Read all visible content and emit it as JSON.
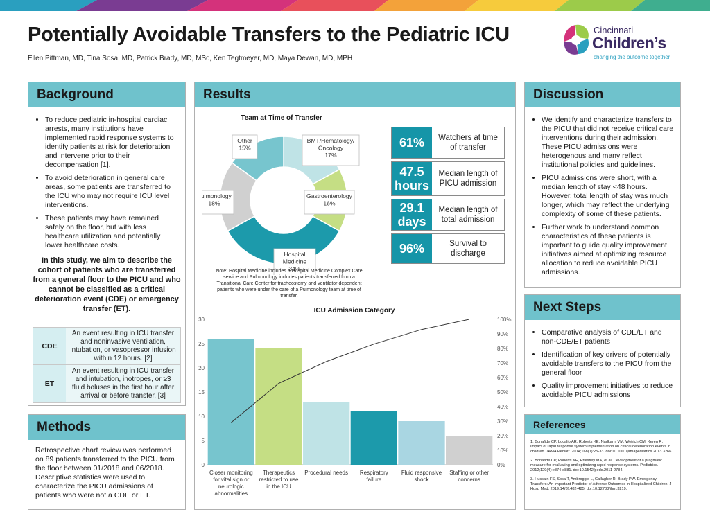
{
  "header": {
    "title": "Potentially Avoidable Transfers to the Pediatric ICU",
    "authors": "Ellen Pittman, MD, Tina Sosa, MD, Patrick Brady, MD, MSc, Ken Tegtmeyer, MD, Maya Dewan, MD, MPH"
  },
  "logo": {
    "line1": "Cincinnati",
    "line2": "Children’s",
    "tagline": "changing the outcome together"
  },
  "background": {
    "heading": "Background",
    "bullets": [
      "To reduce pediatric in-hospital cardiac arrests, many institutions have implemented rapid response systems to identify patients at risk for deterioration and intervene prior to their decompensation [1].",
      "To avoid deterioration in general care areas, some patients are transferred to the ICU who may not require ICU level interventions.",
      "These patients may have remained safely on the floor, but with less healthcare utilization and potentially lower healthcare costs."
    ],
    "aim": "In this study, we aim to describe the cohort of patients who are transferred from a general floor to the PICU and who cannot be classified as a critical deterioration event (CDE) or emergency transfer (ET).",
    "definitions": [
      {
        "key": "CDE",
        "text": "An event resulting in ICU transfer and noninvasive ventilation, intubation, or vasopressor infusion within 12 hours. [2]"
      },
      {
        "key": "ET",
        "text": "An event resulting in ICU transfer and intubation, inotropes, or ≥3 fluid boluses in the first hour after arrival or before transfer. [3]"
      }
    ]
  },
  "methods": {
    "heading": "Methods",
    "text": "Retrospective chart review was performed on 89 patients transferred to the PICU from the floor between 01/2018 and 06/2018. Descriptive statistics were used to characterize the PICU admissions of patients who were not a CDE or ET."
  },
  "results": {
    "heading": "Results",
    "stats": [
      {
        "value": "61%",
        "label": "Watchers at time of transfer"
      },
      {
        "value": "47.5 hours",
        "label": "Median length of PICU admission"
      },
      {
        "value": "29.1 days",
        "label": "Median length of total admission"
      },
      {
        "value": "96%",
        "label": "Survival to discharge"
      }
    ],
    "note": "Note: Hospital Medicine includes a Hospital Medicine Complex Care service and Pulmonology includes patients transferred from a Transitional Care Center for tracheostomy and ventilator dependent patients who were under the care of a Pulmonology team at time of transfer."
  },
  "discussion": {
    "heading": "Discussion",
    "bullets": [
      "We identify and characterize transfers to the PICU that did not receive critical care interventions during their admission. These PICU admissions were heterogenous and many reflect institutional policies and guidelines.",
      "PICU admissions were short, with a median length of stay <48 hours. However, total length of stay was much longer, which may reflect the underlying complexity of some of these patients.",
      "Further work to understand common characteristics of these patients is important to guide quality improvement initiatives aimed at optimizing resource allocation to reduce avoidable PICU admissions."
    ]
  },
  "next_steps": {
    "heading": "Next Steps",
    "bullets": [
      "Comparative analysis of CDE/ET and non-CDE/ET patients",
      "Identification of key drivers of potentially avoidable transfers to the PICU from the general floor",
      "Quality improvement initiatives to reduce avoidable PICU admissions"
    ]
  },
  "references": {
    "heading": "References",
    "items": [
      "1. Bonafide CP, Localio AR, Roberts KE, Nadkarni VM, Weirich CM, Keren R. Impact of rapid response system implementation on critical deterioration events in children. JAMA Pediatr. 2014;168(1):25-33. doi:10.1001/jamapediatrics.2013.3266.",
      "2. Bonafide CP, Roberts KE, Priestley MA, et al. Development of a pragmatic measure for evaluating and optimizing rapid response systems. Pediatrics. 2012;129(4):e874-e881. doi:10.1542/peds.2011-2784.",
      "3. Hussain FS, Sosa T, Ambroggio L, Gallagher R, Brady PW. Emergency Transfers: An Important Predictor of Adverse Outcomes in Hospitalized Children. J Hosp Med. 2019;14(8):482-485. doi:10.12788/jhm.3219."
    ]
  },
  "colors": {
    "header_band": "#6fc2cc",
    "stat_fill": "#1595a8",
    "definition_fill": "#d5eef1"
  },
  "chart_data": [
    {
      "type": "pie",
      "title": "Team at Time of Transfer",
      "slices": [
        {
          "label": "BMT/Hematology/ Oncology",
          "value": 17,
          "color": "#bfe3e6"
        },
        {
          "label": "Gastroenterology",
          "value": 16,
          "color": "#c5de84"
        },
        {
          "label": "Hospital Medicine",
          "value": 34,
          "color": "#1c9aab"
        },
        {
          "label": "Pulmonology",
          "value": 18,
          "color": "#d0d0d0"
        },
        {
          "label": "Other",
          "value": 15,
          "color": "#77c5ce"
        }
      ]
    },
    {
      "type": "bar",
      "title": "ICU Admission Category",
      "categories": [
        "Closer monitoring for vital sign or neurologic abnormalities",
        "Therapeutics restricted to use in the ICU",
        "Procedural needs",
        "Respiratory failure",
        "Fluid responsive shock",
        "Staffing or other concerns"
      ],
      "values": [
        26,
        24,
        13,
        11,
        9,
        6
      ],
      "colors": [
        "#77c5ce",
        "#c5de84",
        "#bfe3e6",
        "#1c9aab",
        "#a9d6e2",
        "#d0d0d0"
      ],
      "ylim": [
        0,
        30
      ],
      "y_ticks": [
        "0",
        "5",
        "10",
        "15",
        "20",
        "25",
        "30"
      ],
      "secondary_axis": {
        "ylim": [
          0,
          100
        ],
        "ticks": [
          "0%",
          "10%",
          "20%",
          "30%",
          "40%",
          "50%",
          "60%",
          "70%",
          "80%",
          "90%",
          "100%"
        ]
      },
      "cumulative_percent": [
        29,
        56,
        71,
        83,
        93,
        100
      ]
    }
  ]
}
